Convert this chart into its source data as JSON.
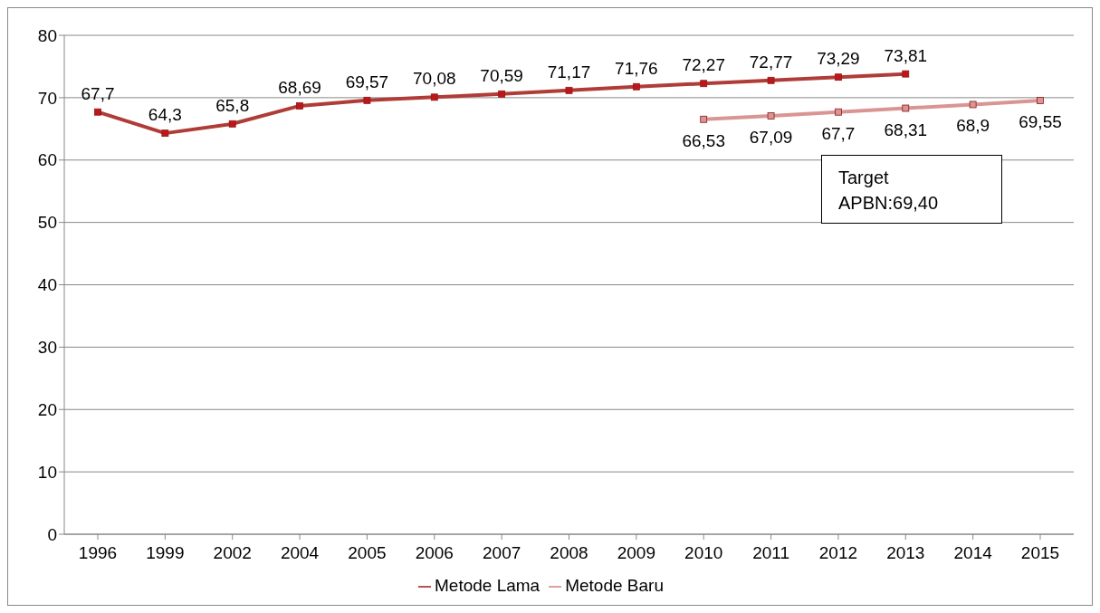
{
  "chart_data": {
    "type": "line",
    "categories": [
      "1996",
      "1999",
      "2002",
      "2004",
      "2005",
      "2006",
      "2007",
      "2008",
      "2009",
      "2010",
      "2011",
      "2012",
      "2013",
      "2014",
      "2015"
    ],
    "series": [
      {
        "name": "Metode Lama",
        "color": "#b03c38",
        "values": [
          67.7,
          64.3,
          65.8,
          68.69,
          69.57,
          70.08,
          70.59,
          71.17,
          71.76,
          72.27,
          72.77,
          73.29,
          73.81,
          null,
          null
        ],
        "value_labels": [
          "67,7",
          "64,3",
          "65,8",
          "68,69",
          "69,57",
          "70,08",
          "70,59",
          "71,17",
          "71,76",
          "72,27",
          "72,77",
          "73,29",
          "73,81",
          null,
          null
        ]
      },
      {
        "name": "Metode Baru",
        "color": "#d99593",
        "values": [
          null,
          null,
          null,
          null,
          null,
          null,
          null,
          null,
          null,
          66.53,
          67.09,
          67.7,
          68.31,
          68.9,
          69.55
        ],
        "value_labels": [
          null,
          null,
          null,
          null,
          null,
          null,
          null,
          null,
          null,
          "66,53",
          "67,09",
          "67,7",
          "68,31",
          "68,9",
          "69,55"
        ]
      }
    ],
    "ylim": [
      0,
      80
    ],
    "yticks": [
      0,
      10,
      20,
      30,
      40,
      50,
      60,
      70,
      80
    ],
    "grid": "y",
    "legend": "bottom",
    "marker": "square",
    "line_style": "solid",
    "annotations": [
      "Target APBN:69,40"
    ]
  }
}
